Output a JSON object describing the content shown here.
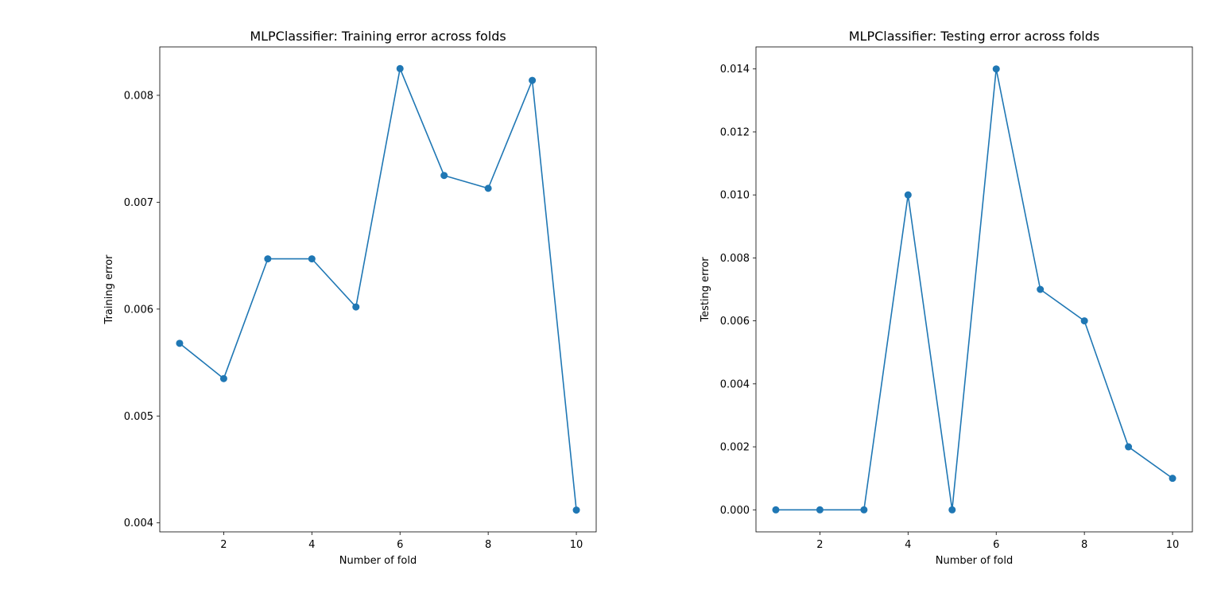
{
  "chart_data": [
    {
      "type": "line",
      "title": "MLPClassifier: Training error across folds",
      "xlabel": "Number of fold",
      "ylabel": "Training error",
      "x": [
        1,
        2,
        3,
        4,
        5,
        6,
        7,
        8,
        9,
        10
      ],
      "series": [
        {
          "values": [
            0.00568,
            0.00535,
            0.00647,
            0.00647,
            0.00602,
            0.00825,
            0.00725,
            0.00713,
            0.00814,
            0.00412
          ]
        }
      ],
      "xlim": [
        0.55,
        10.45
      ],
      "ylim": [
        0.003916,
        0.008453
      ],
      "xticks": [
        2,
        4,
        6,
        8,
        10
      ],
      "xtick_labels": [
        "2",
        "4",
        "6",
        "8",
        "10"
      ],
      "yticks": [
        0.004,
        0.005,
        0.006,
        0.007,
        0.008
      ],
      "ytick_labels": [
        "0.004",
        "0.005",
        "0.006",
        "0.007",
        "0.008"
      ],
      "grid": false,
      "marker": "circle",
      "color": "#1f77b4"
    },
    {
      "type": "line",
      "title": "MLPClassifier: Testing error across folds",
      "xlabel": "Number of fold",
      "ylabel": "Testing error",
      "x": [
        1,
        2,
        3,
        4,
        5,
        6,
        7,
        8,
        9,
        10
      ],
      "series": [
        {
          "values": [
            0.0,
            0.0,
            0.0,
            0.01,
            0.0,
            0.014,
            0.007,
            0.006,
            0.002,
            0.001
          ]
        }
      ],
      "xlim": [
        0.55,
        10.45
      ],
      "ylim": [
        -0.0007,
        0.0147
      ],
      "xticks": [
        2,
        4,
        6,
        8,
        10
      ],
      "xtick_labels": [
        "2",
        "4",
        "6",
        "8",
        "10"
      ],
      "yticks": [
        0.0,
        0.002,
        0.004,
        0.006,
        0.008,
        0.01,
        0.012,
        0.014
      ],
      "ytick_labels": [
        "0.000",
        "0.002",
        "0.004",
        "0.006",
        "0.008",
        "0.010",
        "0.012",
        "0.014"
      ],
      "grid": false,
      "marker": "circle",
      "color": "#1f77b4"
    }
  ]
}
